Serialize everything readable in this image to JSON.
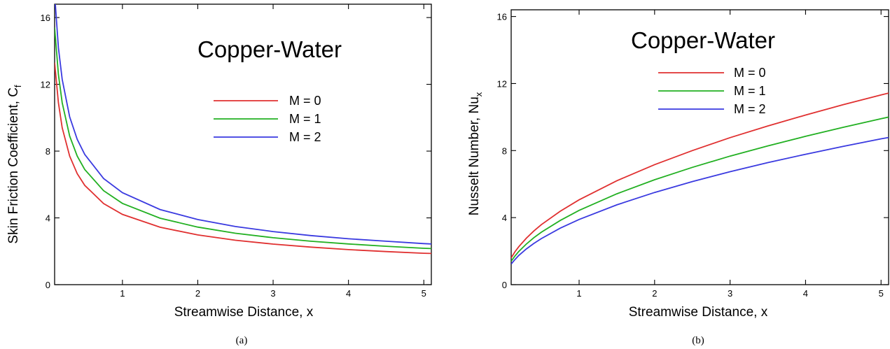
{
  "panels": [
    {
      "caption": "(a)",
      "annotation": "Copper-Water",
      "chart_data": {
        "type": "line",
        "xlabel": "Streamwise Distance, x",
        "ylabel": "Skin Friction Coefficient, C",
        "ylabel_sub": "f",
        "xlim": [
          0.1,
          5.1
        ],
        "ylim": [
          0,
          16.8
        ],
        "xticks": [
          1,
          2,
          3,
          4,
          5
        ],
        "yticks": [
          0,
          4,
          8,
          12,
          16
        ],
        "legend": "upper-middle",
        "x": [
          0.1,
          0.15,
          0.2,
          0.3,
          0.4,
          0.5,
          0.75,
          1,
          1.5,
          2,
          2.5,
          3,
          3.5,
          4,
          4.5,
          5,
          5.1
        ],
        "series": [
          {
            "name": "M = 0",
            "color": "#e03030",
            "values": [
              13.3,
              10.9,
              9.4,
              7.7,
              6.65,
              5.95,
              4.86,
              4.21,
              3.44,
              2.98,
              2.66,
              2.43,
              2.25,
              2.1,
              1.98,
              1.88,
              1.87
            ]
          },
          {
            "name": "M = 1",
            "color": "#22b022",
            "values": [
              15.4,
              12.6,
              10.9,
              8.9,
              7.7,
              6.9,
              5.63,
              4.87,
              3.98,
              3.45,
              3.08,
              2.81,
              2.6,
              2.44,
              2.3,
              2.18,
              2.16
            ]
          },
          {
            "name": "M = 2",
            "color": "#3a3ae0",
            "values": [
              17.4,
              14.2,
              12.3,
              10.05,
              8.7,
              7.8,
              6.36,
              5.51,
              4.5,
              3.9,
              3.48,
              3.18,
              2.94,
              2.75,
              2.6,
              2.46,
              2.44
            ]
          }
        ]
      }
    },
    {
      "caption": "(b)",
      "annotation": "Copper-Water",
      "chart_data": {
        "type": "line",
        "xlabel": "Streamwise Distance, x",
        "ylabel": "Nusselt Number, Nu",
        "ylabel_sub": "x",
        "xlim": [
          0.1,
          5.1
        ],
        "ylim": [
          0,
          16.4
        ],
        "xticks": [
          1,
          2,
          3,
          4,
          5
        ],
        "yticks": [
          0,
          4,
          8,
          12,
          16
        ],
        "legend": "upper-middle",
        "x": [
          0.1,
          0.15,
          0.2,
          0.3,
          0.4,
          0.5,
          0.75,
          1,
          1.5,
          2,
          2.5,
          3,
          3.5,
          4,
          4.5,
          5,
          5.1
        ],
        "series": [
          {
            "name": "M = 0",
            "color": "#e03030",
            "values": [
              1.6,
              1.96,
              2.26,
              2.77,
              3.2,
              3.58,
              4.38,
              5.06,
              6.2,
              7.16,
              8.0,
              8.77,
              9.47,
              10.12,
              10.74,
              11.32,
              11.43
            ]
          },
          {
            "name": "M = 1",
            "color": "#22b022",
            "values": [
              1.4,
              1.71,
              1.98,
              2.42,
              2.8,
              3.13,
              3.83,
              4.43,
              5.42,
              6.26,
              7.0,
              7.67,
              8.28,
              8.85,
              9.39,
              9.9,
              10.0
            ]
          },
          {
            "name": "M = 2",
            "color": "#3a3ae0",
            "values": [
              1.23,
              1.5,
              1.74,
              2.13,
              2.46,
              2.75,
              3.37,
              3.89,
              4.76,
              5.5,
              6.15,
              6.74,
              7.28,
              7.78,
              8.25,
              8.7,
              8.78
            ]
          }
        ]
      }
    }
  ]
}
